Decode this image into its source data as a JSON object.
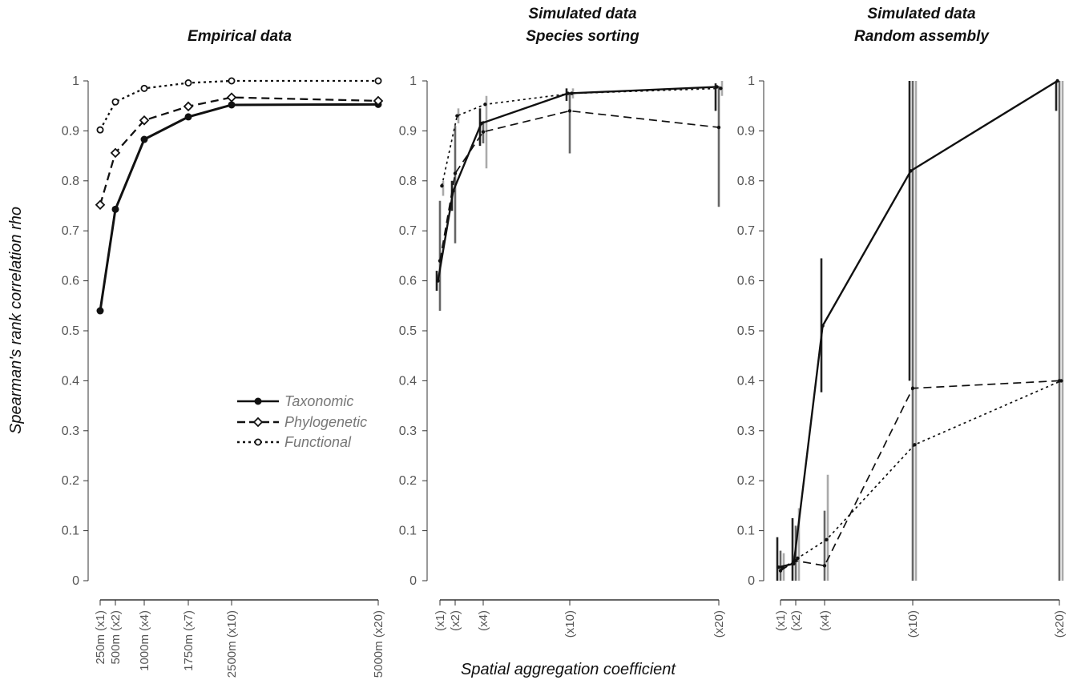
{
  "figure": {
    "ylabel": "Spearman's rank correlation rho",
    "xlabel": "Spatial aggregation coefficient"
  },
  "legend": {
    "items": [
      {
        "label": "Taxonomic",
        "style": "solid",
        "marker": "filled-circle"
      },
      {
        "label": "Phylogenetic",
        "style": "dashed",
        "marker": "open-diamond"
      },
      {
        "label": "Functional",
        "style": "dotted",
        "marker": "open-circle"
      }
    ]
  },
  "chart_data": [
    {
      "type": "line",
      "title": "Empirical data",
      "xlabel": "Spatial aggregation coefficient",
      "ylabel": "Spearman's rank correlation rho",
      "ylim": [
        0,
        1
      ],
      "yticks": [
        "0",
        "0.1",
        "0.2",
        "0.3",
        "0.4",
        "0.5",
        "0.6",
        "0.7",
        "0.8",
        "0.9",
        "1"
      ],
      "x": [
        1,
        2,
        4,
        7,
        10,
        20
      ],
      "xticklabels": [
        "250m (x1)",
        "500m (x2)",
        "1000m (x4)",
        "1750m (x7)",
        "2500m (x10)",
        "5000m (x20)"
      ],
      "legend_position": "center-right",
      "series": [
        {
          "name": "Taxonomic",
          "values": [
            0.54,
            0.743,
            0.883,
            0.928,
            0.952,
            0.953
          ]
        },
        {
          "name": "Phylogenetic",
          "values": [
            0.752,
            0.856,
            0.921,
            0.949,
            0.967,
            0.96
          ]
        },
        {
          "name": "Functional",
          "values": [
            0.902,
            0.958,
            0.985,
            0.996,
            1.0,
            1.0
          ]
        }
      ]
    },
    {
      "type": "line",
      "title": "Simulated data\nSpecies sorting",
      "ylim": [
        0,
        1
      ],
      "yticks": [
        "0",
        "0.1",
        "0.2",
        "0.3",
        "0.4",
        "0.5",
        "0.6",
        "0.7",
        "0.8",
        "0.9",
        "1"
      ],
      "x": [
        1,
        2,
        4,
        10,
        20
      ],
      "xticklabels": [
        "(x1)",
        "(x2)",
        "(x4)",
        "(x10)",
        "(x20)"
      ],
      "series": [
        {
          "name": "Taxonomic",
          "values": [
            0.6,
            0.78,
            0.915,
            0.975,
            0.988
          ],
          "err_low": [
            0.58,
            0.74,
            0.87,
            0.96,
            0.94
          ],
          "err_high": [
            0.62,
            0.8,
            0.945,
            0.985,
            0.995
          ]
        },
        {
          "name": "Phylogenetic",
          "values": [
            0.64,
            0.815,
            0.898,
            0.94,
            0.907
          ],
          "err_low": [
            0.54,
            0.675,
            0.875,
            0.855,
            0.748
          ],
          "err_high": [
            0.76,
            0.91,
            0.92,
            0.975,
            0.99
          ]
        },
        {
          "name": "Functional",
          "values": [
            0.79,
            0.93,
            0.953,
            0.975,
            0.985
          ],
          "err_low": [
            0.77,
            0.915,
            0.825,
            0.965,
            0.97
          ],
          "err_high": [
            0.8,
            0.945,
            0.97,
            0.985,
            1.0
          ]
        }
      ]
    },
    {
      "type": "line",
      "title": "Simulated data\nRandom assembly",
      "ylim": [
        0,
        1
      ],
      "yticks": [
        "0",
        "0.1",
        "0.2",
        "0.3",
        "0.4",
        "0.5",
        "0.6",
        "0.7",
        "0.8",
        "0.9",
        "1"
      ],
      "x": [
        1,
        2,
        4,
        10,
        20
      ],
      "xticklabels": [
        "(x1)",
        "(x2)",
        "(x4)",
        "(x10)",
        "(x20)"
      ],
      "series": [
        {
          "name": "Taxonomic",
          "values": [
            0.027,
            0.034,
            0.51,
            0.82,
            1.0
          ],
          "err_low": [
            0.0,
            0.0,
            0.377,
            0.4,
            0.94
          ],
          "err_high": [
            0.087,
            0.125,
            0.645,
            1.0,
            1.0
          ]
        },
        {
          "name": "Phylogenetic",
          "values": [
            0.02,
            0.04,
            0.03,
            0.385,
            0.4
          ],
          "err_low": [
            0.0,
            0.0,
            0.0,
            0.0,
            0.0
          ],
          "err_high": [
            0.06,
            0.11,
            0.14,
            1.0,
            1.0
          ]
        },
        {
          "name": "Functional",
          "values": [
            0.025,
            0.045,
            0.082,
            0.272,
            0.4
          ],
          "err_low": [
            0.0,
            0.0,
            0.0,
            0.0,
            0.0
          ],
          "err_high": [
            0.055,
            0.145,
            0.212,
            1.0,
            1.0
          ]
        }
      ]
    }
  ]
}
